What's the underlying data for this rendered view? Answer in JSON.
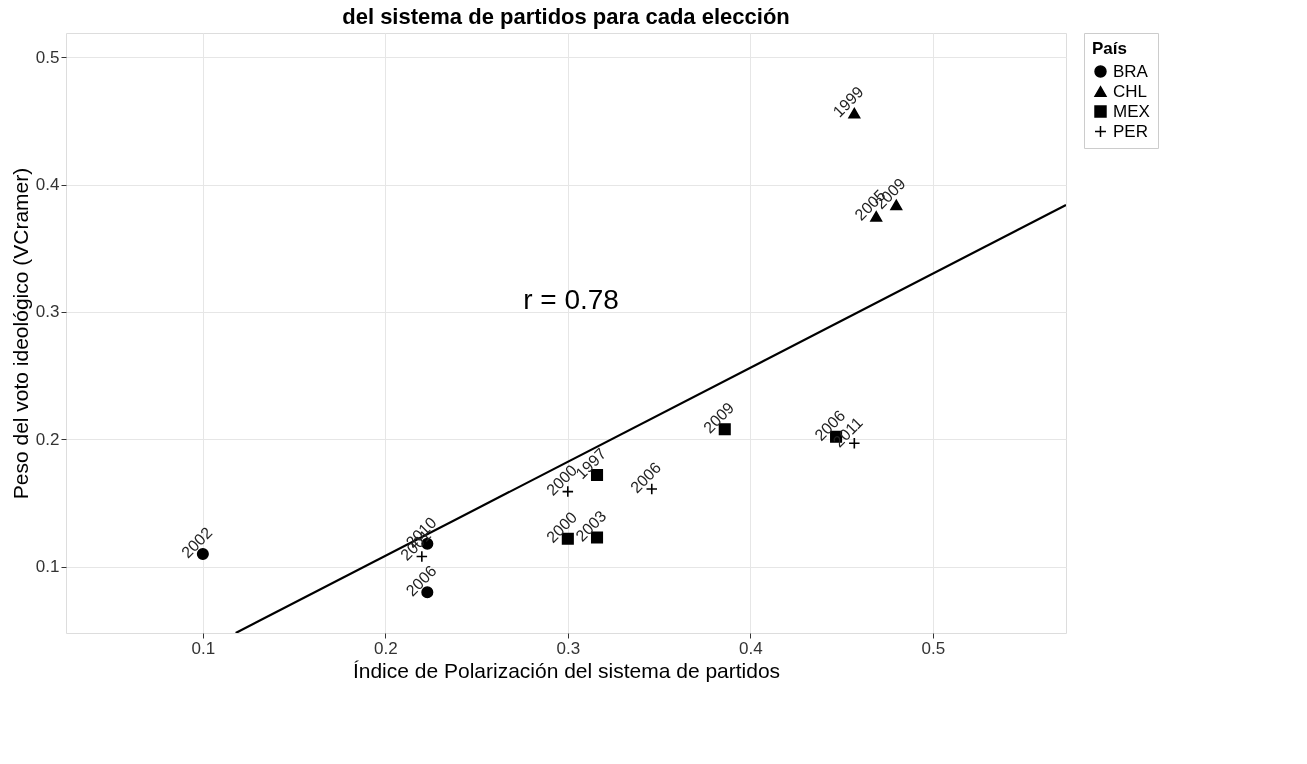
{
  "chart_data": {
    "type": "scatter",
    "title": "del sistema de partidos para cada elección",
    "xlabel": "Índice de Polarización del sistema de partidos",
    "ylabel": "Peso del voto ideológico (VCramer)",
    "legend_title": "País",
    "legend": "right",
    "xlim": [
      0.025,
      0.573
    ],
    "ylim": [
      0.048,
      0.519
    ],
    "xticks": [
      0.1,
      0.2,
      0.3,
      0.4,
      0.5
    ],
    "yticks": [
      0.1,
      0.2,
      0.3,
      0.4,
      0.5
    ],
    "grid": true,
    "annotations": [
      "r = 0.78",
      {
        "text": "2002",
        "x": 0.1,
        "y": 0.11
      },
      {
        "text": "2010",
        "x": 0.223,
        "y": 0.118
      },
      {
        "text": "2006",
        "x": 0.223,
        "y": 0.08
      },
      {
        "text": "1999",
        "x": 0.457,
        "y": 0.456
      },
      {
        "text": "2005",
        "x": 0.469,
        "y": 0.375
      },
      {
        "text": "2009",
        "x": 0.48,
        "y": 0.384
      },
      {
        "text": "2000",
        "x": 0.3,
        "y": 0.122
      },
      {
        "text": "2003",
        "x": 0.316,
        "y": 0.123
      },
      {
        "text": "1997",
        "x": 0.316,
        "y": 0.172
      },
      {
        "text": "2009",
        "x": 0.386,
        "y": 0.208
      },
      {
        "text": "2006",
        "x": 0.447,
        "y": 0.202
      },
      {
        "text": "2001",
        "x": 0.22,
        "y": 0.108
      },
      {
        "text": "2000",
        "x": 0.3,
        "y": 0.159
      },
      {
        "text": "2006",
        "x": 0.346,
        "y": 0.161
      },
      {
        "text": "2011",
        "x": 0.457,
        "y": 0.197
      }
    ],
    "series": [
      {
        "name": "BRA",
        "color": "#000000",
        "marker": "circle",
        "x": [
          0.1,
          0.223,
          0.223
        ],
        "values": [
          0.11,
          0.118,
          0.08
        ]
      },
      {
        "name": "CHL",
        "color": "#000000",
        "marker": "triangle",
        "x": [
          0.457,
          0.469,
          0.48
        ],
        "values": [
          0.456,
          0.375,
          0.384
        ]
      },
      {
        "name": "MEX",
        "color": "#000000",
        "marker": "square",
        "x": [
          0.3,
          0.316,
          0.316,
          0.386,
          0.447
        ],
        "values": [
          0.122,
          0.123,
          0.172,
          0.208,
          0.202
        ]
      },
      {
        "name": "PER",
        "color": "#000000",
        "marker": "cross",
        "x": [
          0.22,
          0.3,
          0.346,
          0.457
        ],
        "values": [
          0.108,
          0.159,
          0.161,
          0.197
        ]
      },
      {
        "type": "line",
        "color": "#000000",
        "x": [
          0.118,
          0.573
        ],
        "values": [
          0.048,
          0.384
        ]
      }
    ]
  }
}
